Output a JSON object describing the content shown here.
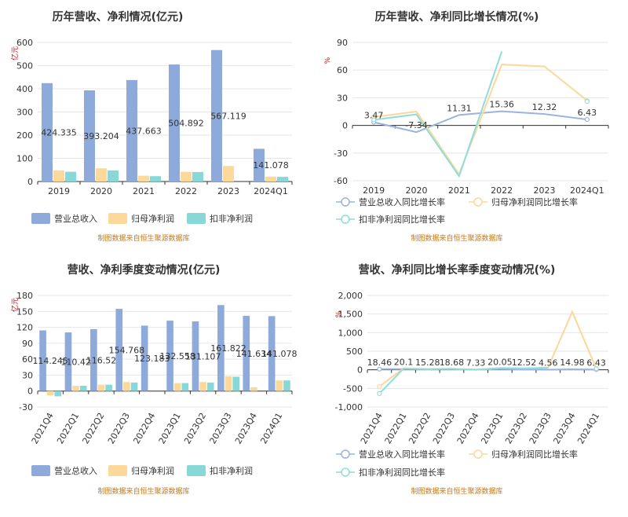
{
  "colors": {
    "revenue": "#8eaadb",
    "net_profit": "#fcd89a",
    "deducted_profit": "#88d8d8",
    "revenue_line": "#9bb3de",
    "net_line": "#fbd89a",
    "deducted_line": "#90dcdc"
  },
  "source_note": "制图数据来自恒生聚源数据库",
  "chart_data": [
    {
      "id": "annual-amounts",
      "type": "bar",
      "title": "历年营收、净利情况(亿元)",
      "unit": "亿元",
      "categories": [
        "2019",
        "2020",
        "2021",
        "2022",
        "2023",
        "2024Q1"
      ],
      "ylim": [
        0,
        600
      ],
      "yticks": [
        0,
        100,
        200,
        300,
        400,
        500,
        600
      ],
      "grid": true,
      "legend_position": "bottom-left",
      "series": [
        {
          "name": "营业总收入",
          "color_key": "revenue",
          "values": [
            424.335,
            393.204,
            437.663,
            504.892,
            567.119,
            141.078
          ]
        },
        {
          "name": "归母净利润",
          "color_key": "net_profit",
          "values": [
            48,
            57,
            25,
            42,
            67,
            21
          ]
        },
        {
          "name": "扣非净利润",
          "color_key": "deducted_profit",
          "values": [
            42,
            48,
            23,
            41,
            0,
            20
          ]
        }
      ],
      "data_labels": [
        "424.335",
        "393.204",
        "437.663",
        "504.892",
        "567.119",
        "141.078"
      ]
    },
    {
      "id": "annual-growth",
      "type": "line",
      "title": "历年营收、净利同比增长情况(%)",
      "unit": "%",
      "categories": [
        "2019",
        "2020",
        "2021",
        "2022",
        "2023",
        "2024Q1"
      ],
      "ylim": [
        -60,
        90
      ],
      "yticks": [
        -60,
        -30,
        0,
        30,
        60,
        90
      ],
      "grid": true,
      "legend_position": "bottom",
      "series": [
        {
          "name": "营业总收入同比增长率",
          "color_key": "revenue_line",
          "values": [
            3.47,
            -7.34,
            11.31,
            15.36,
            12.32,
            6.43
          ]
        },
        {
          "name": "归母净利润同比增长率",
          "color_key": "net_line",
          "values": [
            9,
            15,
            -53,
            66,
            64,
            27
          ]
        },
        {
          "name": "扣非净利润同比增长率",
          "color_key": "deducted_line",
          "values": [
            6,
            12,
            -55,
            80,
            null,
            26
          ]
        }
      ],
      "data_labels": [
        "3.47",
        "-7.34",
        "11.31",
        "15.36",
        "12.32",
        "6.43"
      ]
    },
    {
      "id": "quarterly-amounts",
      "type": "bar",
      "title": "营收、净利季度变动情况(亿元)",
      "unit": "亿元",
      "categories": [
        "2021Q4",
        "2022Q1",
        "2022Q2",
        "2022Q3",
        "2022Q4",
        "2023Q1",
        "2023Q2",
        "2023Q3",
        "2023Q4",
        "2024Q1"
      ],
      "ylim": [
        -30,
        180
      ],
      "yticks": [
        -30,
        0,
        30,
        60,
        90,
        120,
        150,
        180
      ],
      "grid": true,
      "legend_position": "bottom-left",
      "series": [
        {
          "name": "营业总收入",
          "color_key": "revenue",
          "values": [
            114.245,
            110.42,
            116.52,
            154.768,
            123.183,
            132.558,
            131.107,
            161.822,
            141.634,
            141.078
          ]
        },
        {
          "name": "归母净利润",
          "color_key": "net_profit",
          "values": [
            -8,
            10,
            12,
            17,
            0,
            15,
            17,
            28,
            7,
            20
          ]
        },
        {
          "name": "扣非净利润",
          "color_key": "deducted_profit",
          "values": [
            -10,
            10,
            12,
            16,
            0,
            15,
            16,
            27,
            0,
            20
          ]
        }
      ],
      "data_labels": [
        "114.245",
        "110.42",
        "116.52",
        "154.768",
        "123.183",
        "132.558",
        "131.107",
        "161.822",
        "141.634",
        "141.078"
      ]
    },
    {
      "id": "quarterly-growth",
      "type": "line",
      "title": "营收、净利同比增长率季度变动情况(%)",
      "unit": "%",
      "categories": [
        "2021Q4",
        "2022Q1",
        "2022Q2",
        "2022Q3",
        "2022Q4",
        "2023Q1",
        "2023Q2",
        "2023Q3",
        "2023Q4",
        "2024Q1"
      ],
      "ylim": [
        -1000,
        2000
      ],
      "yticks": [
        -1000,
        -500,
        0,
        500,
        1000,
        1500,
        2000
      ],
      "ytick_labels": [
        "-1,000",
        "-500",
        "0",
        "500",
        "1,000",
        "1,500",
        "2,000"
      ],
      "grid": true,
      "legend_position": "bottom",
      "series": [
        {
          "name": "营业总收入同比增长率",
          "color_key": "revenue_line",
          "values": [
            18.46,
            20.1,
            15.28,
            18.68,
            7.33,
            20.05,
            12.52,
            4.56,
            14.98,
            6.43
          ]
        },
        {
          "name": "归母净利润同比增长率",
          "color_key": "net_line",
          "values": [
            -450,
            40,
            20,
            30,
            0,
            50,
            40,
            60,
            1560,
            30
          ]
        },
        {
          "name": "扣非净利润同比增长率",
          "color_key": "deducted_line",
          "values": [
            -640,
            30,
            20,
            25,
            0,
            45,
            35,
            55,
            null,
            30
          ]
        }
      ],
      "data_labels": [
        "18.46",
        "20.1",
        "15.28",
        "18.68",
        "7.33",
        "20.05",
        "12.52",
        "4.56",
        "14.98",
        "6.43"
      ]
    }
  ]
}
